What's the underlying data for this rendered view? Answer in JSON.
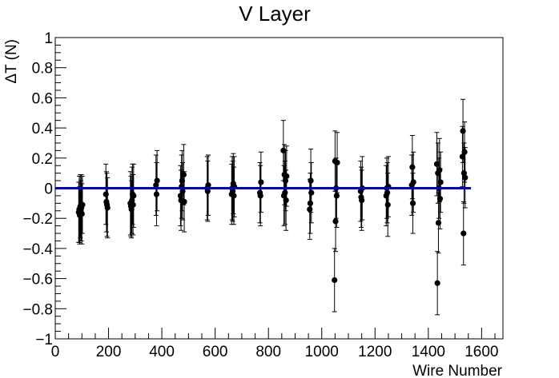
{
  "chart_data": {
    "type": "scatter",
    "title": "V Layer",
    "xlabel": "Wire Number",
    "ylabel": "ΔT (N)",
    "xlim": [
      0,
      1680
    ],
    "ylim": [
      -1,
      1
    ],
    "xticks": [
      0,
      200,
      400,
      600,
      800,
      1000,
      1200,
      1400,
      1600
    ],
    "yticks": [
      -1,
      -0.8,
      -0.6,
      -0.4,
      -0.2,
      0,
      0.2,
      0.4,
      0.6,
      0.8,
      1
    ],
    "xtick_labels": [
      "0",
      "200",
      "400",
      "600",
      "800",
      "1000",
      "1200",
      "1400",
      "1600"
    ],
    "ytick_labels": [
      "−1",
      "−0.8",
      "−0.6",
      "−0.4",
      "−0.2",
      "0",
      "0.2",
      "0.4",
      "0.6",
      "0.8",
      "1"
    ],
    "grid": false,
    "marker_color": "#000000",
    "fit_line": {
      "x": [
        0,
        1560
      ],
      "y": [
        0,
        0
      ],
      "color": "#0000cc"
    },
    "points": [
      {
        "x": 88,
        "y": -0.16,
        "err": 0.2
      },
      {
        "x": 90,
        "y": -0.14,
        "err": 0.22
      },
      {
        "x": 92,
        "y": -0.18,
        "err": 0.19
      },
      {
        "x": 94,
        "y": -0.12,
        "err": 0.21
      },
      {
        "x": 96,
        "y": -0.15,
        "err": 0.2
      },
      {
        "x": 98,
        "y": -0.13,
        "err": 0.22
      },
      {
        "x": 100,
        "y": -0.17,
        "err": 0.2
      },
      {
        "x": 102,
        "y": -0.11,
        "err": 0.19
      },
      {
        "x": 190,
        "y": -0.04,
        "err": 0.2
      },
      {
        "x": 192,
        "y": -0.09,
        "err": 0.2
      },
      {
        "x": 194,
        "y": -0.11,
        "err": 0.21
      },
      {
        "x": 196,
        "y": -0.13,
        "err": 0.2
      },
      {
        "x": 282,
        "y": -0.1,
        "err": 0.21
      },
      {
        "x": 284,
        "y": -0.12,
        "err": 0.2
      },
      {
        "x": 286,
        "y": -0.14,
        "err": 0.19
      },
      {
        "x": 288,
        "y": -0.08,
        "err": 0.22
      },
      {
        "x": 290,
        "y": -0.04,
        "err": 0.2
      },
      {
        "x": 292,
        "y": -0.11,
        "err": 0.2
      },
      {
        "x": 294,
        "y": -0.05,
        "err": 0.21
      },
      {
        "x": 378,
        "y": 0.02,
        "err": 0.2
      },
      {
        "x": 380,
        "y": -0.04,
        "err": 0.21
      },
      {
        "x": 382,
        "y": 0.05,
        "err": 0.2
      },
      {
        "x": 470,
        "y": -0.05,
        "err": 0.2
      },
      {
        "x": 472,
        "y": -0.08,
        "err": 0.2
      },
      {
        "x": 474,
        "y": 0.01,
        "err": 0.21
      },
      {
        "x": 476,
        "y": 0.05,
        "err": 0.2
      },
      {
        "x": 478,
        "y": -0.02,
        "err": 0.19
      },
      {
        "x": 482,
        "y": 0.09,
        "err": 0.2
      },
      {
        "x": 484,
        "y": -0.09,
        "err": 0.2
      },
      {
        "x": 570,
        "y": 0.0,
        "err": 0.21
      },
      {
        "x": 572,
        "y": -0.02,
        "err": 0.2
      },
      {
        "x": 574,
        "y": 0.02,
        "err": 0.2
      },
      {
        "x": 662,
        "y": -0.04,
        "err": 0.2
      },
      {
        "x": 664,
        "y": 0.0,
        "err": 0.21
      },
      {
        "x": 666,
        "y": -0.02,
        "err": 0.2
      },
      {
        "x": 668,
        "y": 0.03,
        "err": 0.2
      },
      {
        "x": 670,
        "y": -0.05,
        "err": 0.19
      },
      {
        "x": 672,
        "y": 0.01,
        "err": 0.2
      },
      {
        "x": 768,
        "y": -0.03,
        "err": 0.2
      },
      {
        "x": 770,
        "y": -0.05,
        "err": 0.2
      },
      {
        "x": 772,
        "y": 0.04,
        "err": 0.2
      },
      {
        "x": 856,
        "y": 0.25,
        "err": 0.2
      },
      {
        "x": 858,
        "y": -0.05,
        "err": 0.2
      },
      {
        "x": 860,
        "y": 0.09,
        "err": 0.2
      },
      {
        "x": 862,
        "y": -0.03,
        "err": 0.21
      },
      {
        "x": 864,
        "y": 0.05,
        "err": 0.2
      },
      {
        "x": 866,
        "y": -0.08,
        "err": 0.2
      },
      {
        "x": 868,
        "y": 0.08,
        "err": 0.2
      },
      {
        "x": 955,
        "y": -0.14,
        "err": 0.2
      },
      {
        "x": 957,
        "y": -0.1,
        "err": 0.2
      },
      {
        "x": 959,
        "y": 0.05,
        "err": 0.21
      },
      {
        "x": 961,
        "y": -0.03,
        "err": 0.2
      },
      {
        "x": 1048,
        "y": -0.61,
        "err": 0.21
      },
      {
        "x": 1050,
        "y": 0.18,
        "err": 0.2
      },
      {
        "x": 1052,
        "y": -0.22,
        "err": 0.2
      },
      {
        "x": 1054,
        "y": 0.0,
        "err": 0.2
      },
      {
        "x": 1056,
        "y": -0.05,
        "err": 0.21
      },
      {
        "x": 1058,
        "y": 0.17,
        "err": 0.2
      },
      {
        "x": 1146,
        "y": -0.02,
        "err": 0.2
      },
      {
        "x": 1148,
        "y": -0.06,
        "err": 0.2
      },
      {
        "x": 1150,
        "y": -0.08,
        "err": 0.2
      },
      {
        "x": 1152,
        "y": 0.0,
        "err": 0.21
      },
      {
        "x": 1242,
        "y": -0.05,
        "err": 0.2
      },
      {
        "x": 1244,
        "y": 0.0,
        "err": 0.2
      },
      {
        "x": 1246,
        "y": -0.03,
        "err": 0.2
      },
      {
        "x": 1248,
        "y": -0.11,
        "err": 0.21
      },
      {
        "x": 1250,
        "y": 0.01,
        "err": 0.2
      },
      {
        "x": 1338,
        "y": 0.02,
        "err": 0.2
      },
      {
        "x": 1340,
        "y": 0.14,
        "err": 0.21
      },
      {
        "x": 1342,
        "y": -0.1,
        "err": 0.2
      },
      {
        "x": 1344,
        "y": 0.04,
        "err": 0.2
      },
      {
        "x": 1432,
        "y": 0.16,
        "err": 0.21
      },
      {
        "x": 1434,
        "y": -0.63,
        "err": 0.21
      },
      {
        "x": 1436,
        "y": 0.1,
        "err": 0.2
      },
      {
        "x": 1438,
        "y": -0.23,
        "err": 0.2
      },
      {
        "x": 1440,
        "y": 0.0,
        "err": 0.2
      },
      {
        "x": 1442,
        "y": 0.12,
        "err": 0.21
      },
      {
        "x": 1444,
        "y": -0.07,
        "err": 0.2
      },
      {
        "x": 1446,
        "y": 0.04,
        "err": 0.2
      },
      {
        "x": 1528,
        "y": 0.21,
        "err": 0.2
      },
      {
        "x": 1530,
        "y": 0.38,
        "err": 0.21
      },
      {
        "x": 1532,
        "y": -0.3,
        "err": 0.21
      },
      {
        "x": 1534,
        "y": 0.1,
        "err": 0.2
      },
      {
        "x": 1536,
        "y": 0.24,
        "err": 0.2
      },
      {
        "x": 1538,
        "y": 0.07,
        "err": 0.2
      }
    ]
  }
}
